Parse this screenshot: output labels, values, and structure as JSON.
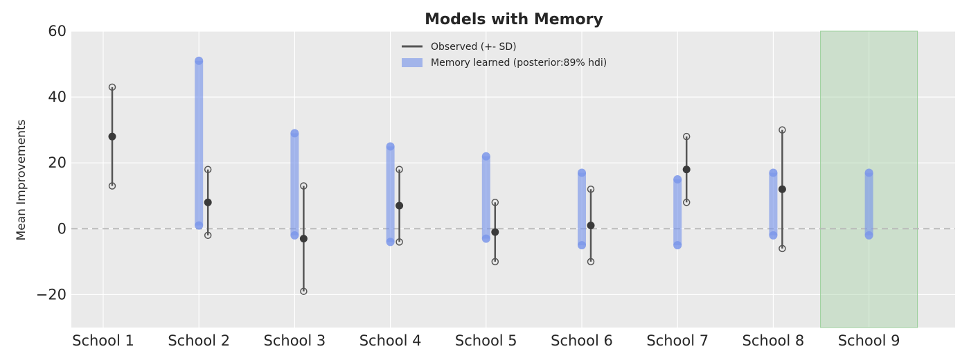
{
  "chart_data": {
    "type": "interval",
    "title": "Models with Memory",
    "xlabel": "",
    "ylabel": "Mean Improvements",
    "ylim": [
      -30,
      60
    ],
    "yticks": [
      60,
      40,
      20,
      0,
      -20
    ],
    "ytick_labels": [
      "60",
      "40",
      "20",
      "0",
      "−20"
    ],
    "categories": [
      "School 1",
      "School 2",
      "School 3",
      "School 4",
      "School 5",
      "School 6",
      "School 7",
      "School 8",
      "School 9"
    ],
    "grid": true,
    "reference_line": 0,
    "legend_position": "top-center",
    "highlighted_category": "School 9",
    "series": [
      {
        "name": "Observed (+- SD)",
        "color": "#555555",
        "mean": [
          28,
          8,
          -3,
          7,
          -1,
          1,
          18,
          12,
          null
        ],
        "low": [
          13,
          -2,
          -19,
          -4,
          -10,
          -10,
          8,
          -6,
          null
        ],
        "high": [
          43,
          18,
          13,
          18,
          8,
          12,
          28,
          30,
          null
        ]
      },
      {
        "name": "Memory learned (posterior:89% hdi)",
        "color": "#7b96ea",
        "low": [
          null,
          1,
          -2,
          -4,
          -3,
          -5,
          -5,
          -2,
          -2
        ],
        "high": [
          null,
          51,
          29,
          25,
          22,
          17,
          15,
          17,
          17
        ]
      }
    ],
    "colors": {
      "background": "#eaeaea",
      "grid": "#ffffff",
      "highlight": "#a9d3a9",
      "reference": "#b8b8b8"
    }
  }
}
